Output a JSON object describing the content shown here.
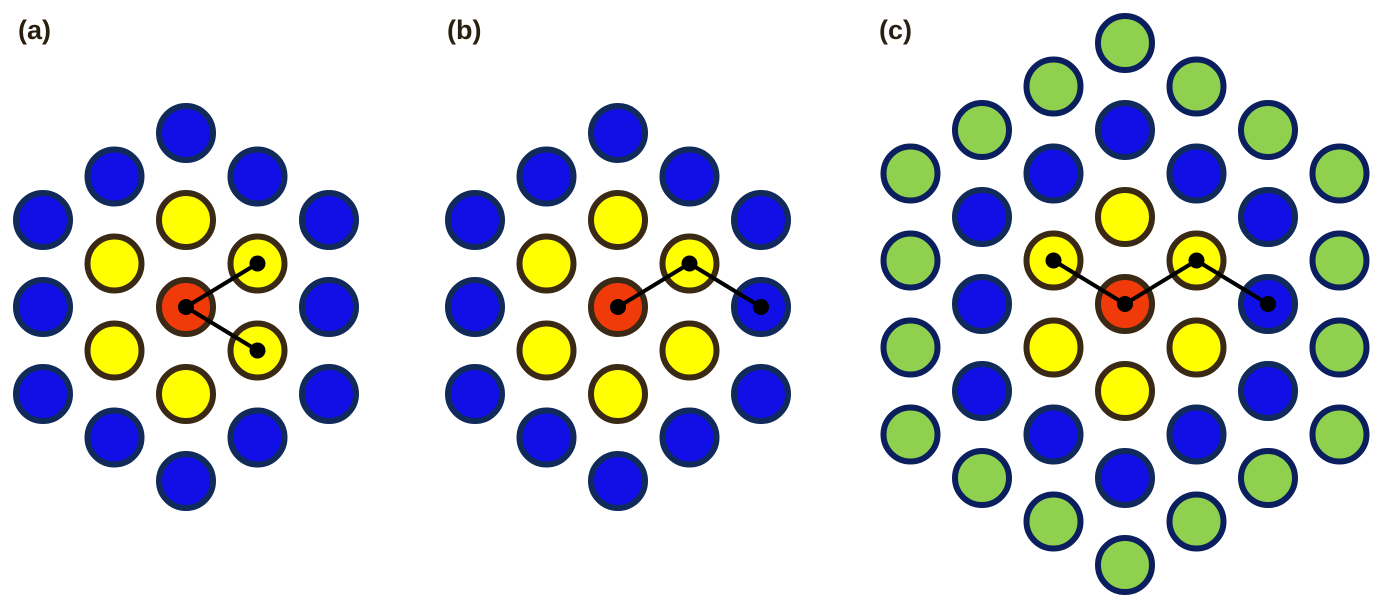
{
  "panels": [
    {
      "label": "(a)"
    },
    {
      "label": "(b)"
    },
    {
      "label": "(c)"
    }
  ],
  "colors": {
    "background": "#ffffff",
    "center_fill": "#f03a0a",
    "center_stroke": "#3a2a15",
    "first_shell_fill": "#ffff00",
    "first_shell_stroke": "#3a2a15",
    "second_shell_fill": "#0f0fe6",
    "second_shell_stroke": "#102a5a",
    "third_shell_fill": "#8fd14f",
    "third_shell_stroke": "#0b1f5e",
    "bond_line": "#000000",
    "bond_node": "#000000",
    "label_text": "#2a1e10"
  }
}
